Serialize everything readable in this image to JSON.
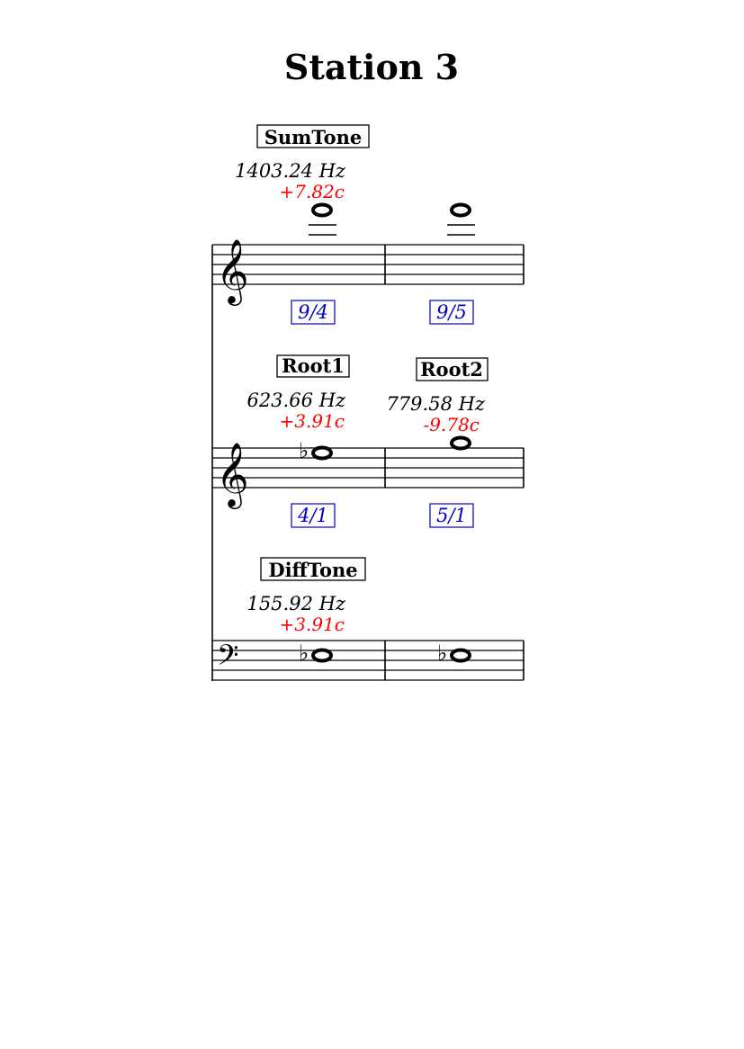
{
  "title": "Station 3",
  "staves": [
    {
      "clef": "treble",
      "label": "SumTone",
      "hz": "1403.24 Hz",
      "cents": "+7.82c",
      "notes": [
        {
          "name": "F6",
          "accidental": ""
        },
        {
          "name": "F6",
          "accidental": ""
        }
      ],
      "ratios": [
        "9/4",
        "9/5"
      ]
    },
    {
      "clef": "treble",
      "labels": [
        "Root1",
        "Root2"
      ],
      "hz": [
        "623.66 Hz",
        "779.58 Hz"
      ],
      "cents": [
        "+3.91c",
        "-9.78c"
      ],
      "notes": [
        {
          "name": "Eb5",
          "accidental": "flat"
        },
        {
          "name": "G5",
          "accidental": ""
        }
      ],
      "ratios": [
        "4/1",
        "5/1"
      ]
    },
    {
      "clef": "bass",
      "label": "DiffTone",
      "hz": "155.92 Hz",
      "cents": "+3.91c",
      "notes": [
        {
          "name": "Eb3",
          "accidental": "flat"
        },
        {
          "name": "Eb3",
          "accidental": "flat"
        }
      ]
    }
  ]
}
